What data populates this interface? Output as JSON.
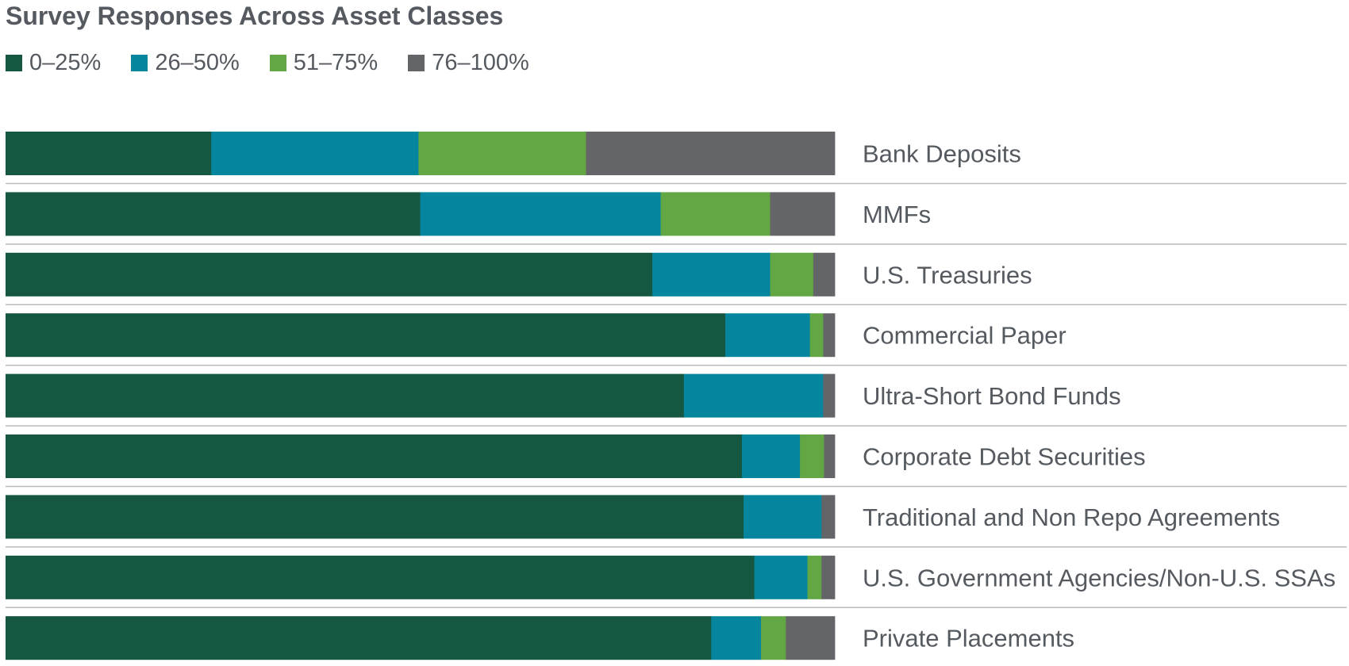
{
  "chart_data": {
    "type": "bar",
    "orientation": "horizontal",
    "stacked": true,
    "normalized": true,
    "title": "Survey Responses Across Asset Classes",
    "legend_position": "top-left",
    "grid": false,
    "xlim": [
      0,
      100
    ],
    "categories": [
      "Bank Deposits",
      "MMFs",
      "U.S. Treasuries",
      "Commercial Paper",
      "Ultra-Short Bond Funds",
      "Corporate Debt Securities",
      "Traditional and Non Repo Agreements",
      "U.S. Government Agencies/Non-U.S. SSAs",
      "Private Placements"
    ],
    "series": [
      {
        "name": "0–25%",
        "color": "#155741",
        "values": [
          24.8,
          50.0,
          78.0,
          86.8,
          81.8,
          88.8,
          89.0,
          90.3,
          85.1
        ]
      },
      {
        "name": "26–50%",
        "color": "#06869e",
        "values": [
          25.0,
          29.0,
          14.2,
          10.2,
          16.8,
          7.0,
          9.4,
          6.4,
          6.0
        ]
      },
      {
        "name": "51–75%",
        "color": "#62a744",
        "values": [
          20.2,
          13.2,
          5.2,
          1.6,
          0.0,
          2.9,
          0.0,
          1.7,
          3.0
        ]
      },
      {
        "name": "76–100%",
        "color": "#646569",
        "values": [
          30.0,
          7.8,
          2.6,
          1.4,
          1.4,
          1.3,
          1.6,
          1.6,
          5.9
        ]
      }
    ]
  }
}
